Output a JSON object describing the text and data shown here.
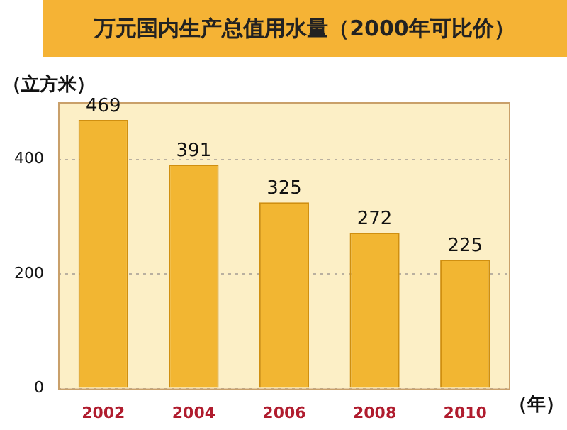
{
  "chart_data": {
    "type": "bar",
    "title": "万元国内生产总值用水量（2000年可比价）",
    "ylabel": "（立方米）",
    "xlabel": "（年）",
    "categories": [
      "2002",
      "2004",
      "2006",
      "2008",
      "2010"
    ],
    "values": [
      469,
      391,
      325,
      272,
      225
    ],
    "color": "#f2b632",
    "ylim": [
      0,
      500
    ],
    "yticks": [
      0,
      200,
      400
    ],
    "grid": "y",
    "data_labels": true
  }
}
